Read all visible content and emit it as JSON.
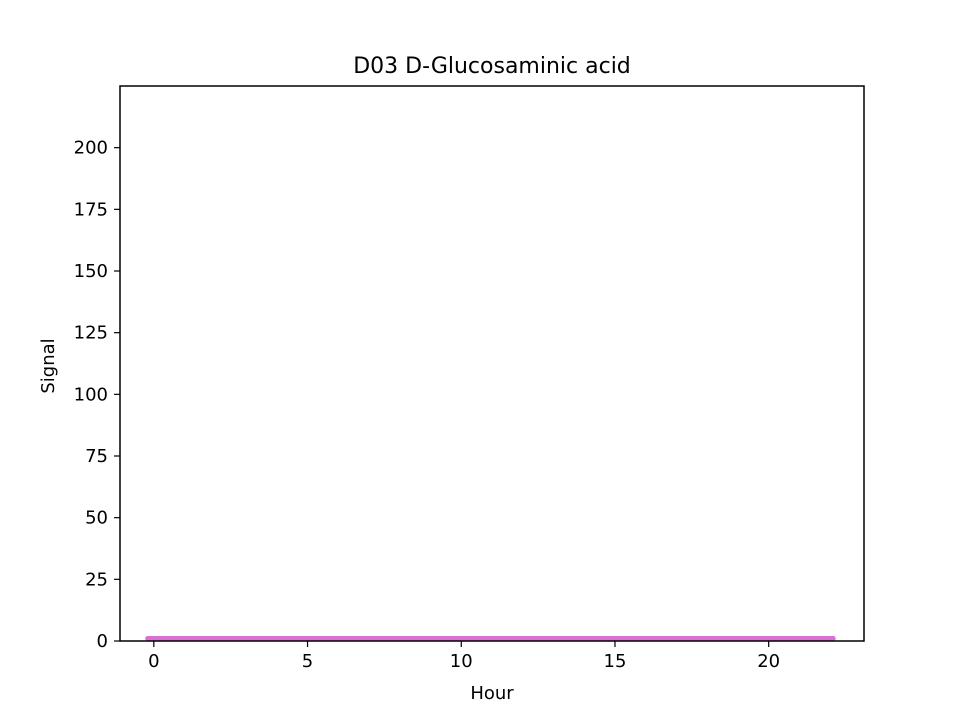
{
  "chart_data": {
    "type": "line",
    "title": "D03 D-Glucosaminic acid",
    "xlabel": "Hour",
    "ylabel": "Signal",
    "xlim": [
      -1.1,
      23.1
    ],
    "ylim": [
      0,
      225
    ],
    "xticks": [
      0,
      5,
      10,
      15,
      20
    ],
    "yticks": [
      0,
      25,
      50,
      75,
      100,
      125,
      150,
      175,
      200
    ],
    "grid": false,
    "series": [
      {
        "color": "#da70d6",
        "x": [
          -0.2,
          22.1
        ],
        "y": [
          1,
          1
        ]
      }
    ]
  }
}
